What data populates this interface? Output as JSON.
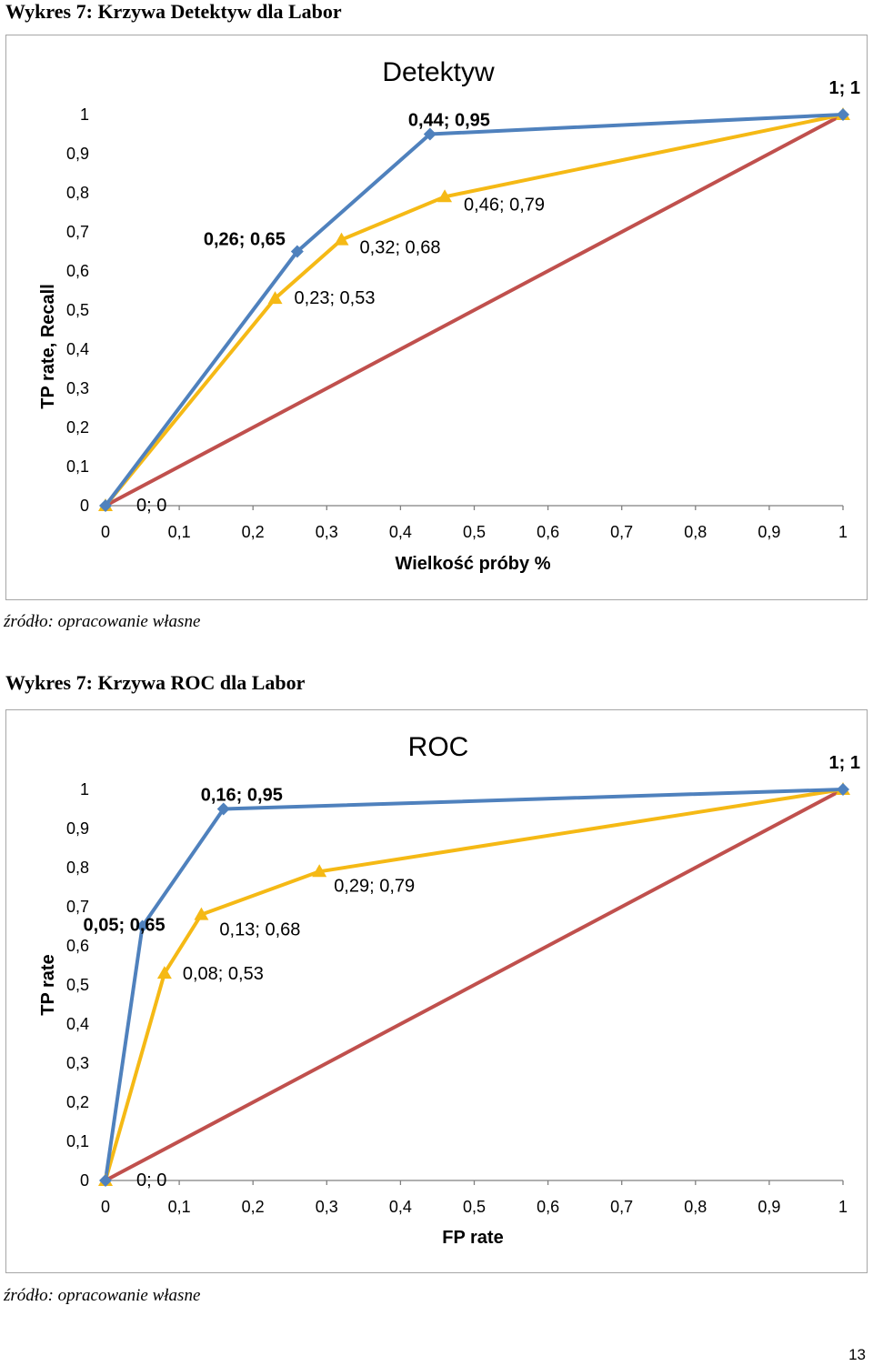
{
  "caption1": "Wykres 7: Krzywa Detektyw dla Labor",
  "source1": "źródło: opracowanie własne",
  "caption2": "Wykres 7: Krzywa ROC dla Labor",
  "source2": "źródło: opracowanie własne",
  "page_number": "13",
  "colors": {
    "blue": "#4f81bd",
    "yellow": "#f5b915",
    "red": "#c0504d",
    "axis": "#808080",
    "text": "#000000"
  },
  "chart_data": [
    {
      "type": "line",
      "title": "Detektyw",
      "xlabel": "Wielkość próby %",
      "ylabel": "TP rate, Recall",
      "xlim": [
        0,
        1
      ],
      "ylim": [
        0,
        1
      ],
      "xticks": [
        "0",
        "0,1",
        "0,2",
        "0,3",
        "0,4",
        "0,5",
        "0,6",
        "0,7",
        "0,8",
        "0,9",
        "1"
      ],
      "yticks": [
        "0",
        "0,1",
        "0,2",
        "0,3",
        "0,4",
        "0,5",
        "0,6",
        "0,7",
        "0,8",
        "0,9",
        "1"
      ],
      "grid": false,
      "series": [
        {
          "color": "#4f81bd",
          "marker": "diamond",
          "points": [
            [
              0,
              0
            ],
            [
              0.26,
              0.65
            ],
            [
              0.44,
              0.95
            ],
            [
              1,
              1
            ]
          ]
        },
        {
          "color": "#f5b915",
          "marker": "triangle",
          "points": [
            [
              0,
              0
            ],
            [
              0.23,
              0.53
            ],
            [
              0.32,
              0.68
            ],
            [
              0.46,
              0.79
            ],
            [
              1,
              1
            ]
          ]
        },
        {
          "color": "#c0504d",
          "marker": "none",
          "points": [
            [
              0,
              0
            ],
            [
              1,
              1
            ]
          ]
        }
      ],
      "annotations": [
        {
          "text": "0; 0",
          "x": 0,
          "y": 0,
          "bold": false
        },
        {
          "text": "0,26; 0,65",
          "x": 0.26,
          "y": 0.65,
          "bold": true
        },
        {
          "text": "0,44; 0,95",
          "x": 0.44,
          "y": 0.95,
          "bold": true
        },
        {
          "text": "1; 1",
          "x": 1,
          "y": 1,
          "bold": true
        },
        {
          "text": "0,23; 0,53",
          "x": 0.23,
          "y": 0.53,
          "bold": false
        },
        {
          "text": "0,32; 0,68",
          "x": 0.32,
          "y": 0.68,
          "bold": false
        },
        {
          "text": "0,46; 0,79",
          "x": 0.46,
          "y": 0.79,
          "bold": false
        }
      ]
    },
    {
      "type": "line",
      "title": "ROC",
      "xlabel": "FP rate",
      "ylabel": "TP rate",
      "xlim": [
        0,
        1
      ],
      "ylim": [
        0,
        1
      ],
      "xticks": [
        "0",
        "0,1",
        "0,2",
        "0,3",
        "0,4",
        "0,5",
        "0,6",
        "0,7",
        "0,8",
        "0,9",
        "1"
      ],
      "yticks": [
        "0",
        "0,1",
        "0,2",
        "0,3",
        "0,4",
        "0,5",
        "0,6",
        "0,7",
        "0,8",
        "0,9",
        "1"
      ],
      "grid": false,
      "series": [
        {
          "color": "#4f81bd",
          "marker": "diamond",
          "points": [
            [
              0,
              0
            ],
            [
              0.05,
              0.65
            ],
            [
              0.16,
              0.95
            ],
            [
              1,
              1
            ]
          ]
        },
        {
          "color": "#f5b915",
          "marker": "triangle",
          "points": [
            [
              0,
              0
            ],
            [
              0.08,
              0.53
            ],
            [
              0.13,
              0.68
            ],
            [
              0.29,
              0.79
            ],
            [
              1,
              1
            ]
          ]
        },
        {
          "color": "#c0504d",
          "marker": "none",
          "points": [
            [
              0,
              0
            ],
            [
              1,
              1
            ]
          ]
        }
      ],
      "annotations": [
        {
          "text": "0; 0",
          "x": 0,
          "y": 0,
          "bold": false
        },
        {
          "text": "0,05; 0,65",
          "x": 0.05,
          "y": 0.65,
          "bold": true
        },
        {
          "text": "0,16; 0,95",
          "x": 0.16,
          "y": 0.95,
          "bold": true
        },
        {
          "text": "1; 1",
          "x": 1,
          "y": 1,
          "bold": true
        },
        {
          "text": "0,08; 0,53",
          "x": 0.08,
          "y": 0.53,
          "bold": false
        },
        {
          "text": "0,13; 0,68",
          "x": 0.13,
          "y": 0.68,
          "bold": false
        },
        {
          "text": "0,29; 0,79",
          "x": 0.29,
          "y": 0.79,
          "bold": false
        }
      ]
    }
  ]
}
